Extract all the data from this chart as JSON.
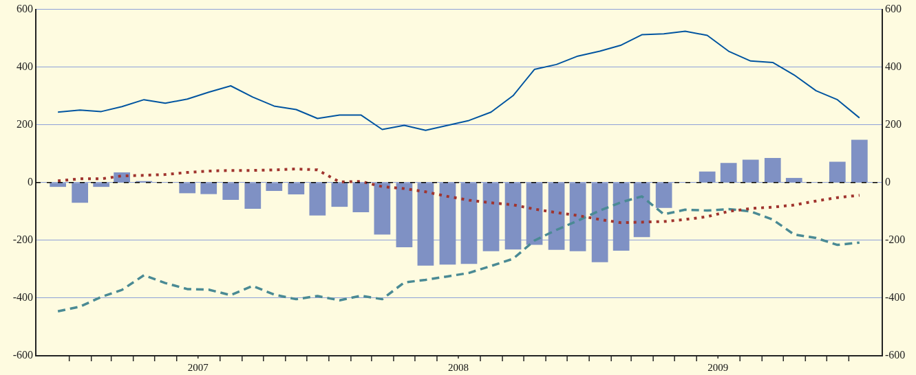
{
  "chart_data": {
    "type": "bar",
    "x": [
      "2006-12-16",
      "2007-01-16",
      "2007-02-15",
      "2007-03-16",
      "2007-04-16",
      "2007-05-16",
      "2007-06-16",
      "2007-07-16",
      "2007-08-16",
      "2007-09-16",
      "2007-10-16",
      "2007-11-16",
      "2007-12-16",
      "2008-01-16",
      "2008-02-15",
      "2008-03-16",
      "2008-04-16",
      "2008-05-16",
      "2008-06-16",
      "2008-07-16",
      "2008-08-16",
      "2008-09-16",
      "2008-10-16",
      "2008-11-16",
      "2008-12-16",
      "2009-01-16",
      "2009-02-15",
      "2009-03-16",
      "2009-04-16",
      "2009-05-16",
      "2009-06-16",
      "2009-07-16",
      "2009-08-16",
      "2009-09-16",
      "2009-10-16",
      "2009-11-16",
      "2009-12-16",
      "2010-01-16"
    ],
    "series": [
      {
        "color": "#7f91c4",
        "values": [
          -15,
          -70,
          -15,
          35,
          5,
          null,
          -37,
          -40,
          -60,
          -91,
          -29,
          -41,
          -114,
          -84,
          -103,
          -180,
          -224,
          -288,
          -284,
          -282,
          -238,
          -232,
          -216,
          -233,
          -238,
          -276,
          -236,
          -189,
          -88,
          null,
          38,
          68,
          79,
          85,
          16,
          null,
          72,
          148
        ]
      },
      {
        "type": "line",
        "color": "#0054a0",
        "line_style": "solid",
        "values": [
          244,
          251,
          246,
          263,
          287,
          275,
          289,
          313,
          335,
          296,
          265,
          253,
          222,
          234,
          234,
          184,
          198,
          181,
          198,
          215,
          244,
          301,
          392,
          409,
          438,
          455,
          476,
          512,
          515,
          524,
          510,
          455,
          421,
          416,
          373,
          318,
          287,
          224
        ]
      },
      {
        "type": "line",
        "color": "#a0342e",
        "line_style": "dotted",
        "values": [
          6,
          13,
          13,
          23,
          25,
          28,
          35,
          40,
          42,
          42,
          44,
          47,
          44,
          2,
          4,
          -14,
          -21,
          -32,
          -48,
          -61,
          -70,
          -77,
          -92,
          -104,
          -114,
          -128,
          -139,
          -137,
          -135,
          -128,
          -118,
          -100,
          -90,
          -85,
          -78,
          -64,
          -52,
          -44
        ]
      },
      {
        "type": "line",
        "color": "#4a8a94",
        "line_style": "dashed",
        "values": [
          -446,
          -430,
          -396,
          -372,
          -321,
          -348,
          -369,
          -371,
          -390,
          -358,
          -388,
          -404,
          -393,
          -408,
          -392,
          -404,
          -346,
          -337,
          -325,
          -313,
          -289,
          -264,
          -201,
          -164,
          -132,
          -97,
          -68,
          -48,
          -110,
          -94,
          -97,
          -92,
          -100,
          -128,
          -180,
          -192,
          -216,
          -208
        ]
      }
    ],
    "xlim": [
      "2006-12-01",
      "2010-02-01"
    ],
    "xticks": [
      {
        "value": "2007-01-01",
        "label": null
      },
      {
        "value": "2007-02-01",
        "label": null
      },
      {
        "value": "2007-03-01",
        "label": null
      },
      {
        "value": "2007-04-01",
        "label": null
      },
      {
        "value": "2007-05-01",
        "label": null
      },
      {
        "value": "2007-06-01",
        "label": null
      },
      {
        "value": "2007-07-01",
        "label": "2007"
      },
      {
        "value": "2007-08-01",
        "label": null
      },
      {
        "value": "2007-09-01",
        "label": null
      },
      {
        "value": "2007-10-01",
        "label": null
      },
      {
        "value": "2007-11-01",
        "label": null
      },
      {
        "value": "2007-12-01",
        "label": null
      },
      {
        "value": "2008-01-01",
        "label": null
      },
      {
        "value": "2008-02-01",
        "label": null
      },
      {
        "value": "2008-03-01",
        "label": null
      },
      {
        "value": "2008-04-01",
        "label": null
      },
      {
        "value": "2008-05-01",
        "label": null
      },
      {
        "value": "2008-06-01",
        "label": null
      },
      {
        "value": "2008-07-01",
        "label": "2008"
      },
      {
        "value": "2008-08-01",
        "label": null
      },
      {
        "value": "2008-09-01",
        "label": null
      },
      {
        "value": "2008-10-01",
        "label": null
      },
      {
        "value": "2008-11-01",
        "label": null
      },
      {
        "value": "2008-12-01",
        "label": null
      },
      {
        "value": "2009-01-01",
        "label": null
      },
      {
        "value": "2009-02-01",
        "label": null
      },
      {
        "value": "2009-03-01",
        "label": null
      },
      {
        "value": "2009-04-01",
        "label": null
      },
      {
        "value": "2009-05-01",
        "label": null
      },
      {
        "value": "2009-06-01",
        "label": null
      },
      {
        "value": "2009-07-01",
        "label": "2009"
      },
      {
        "value": "2009-08-01",
        "label": null
      },
      {
        "value": "2009-09-01",
        "label": null
      },
      {
        "value": "2009-10-01",
        "label": null
      },
      {
        "value": "2009-11-01",
        "label": null
      },
      {
        "value": "2009-12-01",
        "label": null
      },
      {
        "value": "2010-01-01",
        "label": null
      }
    ],
    "ylim": [
      -600,
      600
    ],
    "yticks": [
      -600,
      -400,
      -200,
      0,
      200,
      400,
      600
    ],
    "y2lim": [
      -600,
      600
    ],
    "y2ticks": [
      -600,
      -400,
      -200,
      0,
      200,
      400,
      600
    ],
    "ref_lines": [
      {
        "axis": "y",
        "value": 0,
        "color": "#000000",
        "line_style": "dashed"
      }
    ],
    "grid": "y",
    "legend": false
  }
}
